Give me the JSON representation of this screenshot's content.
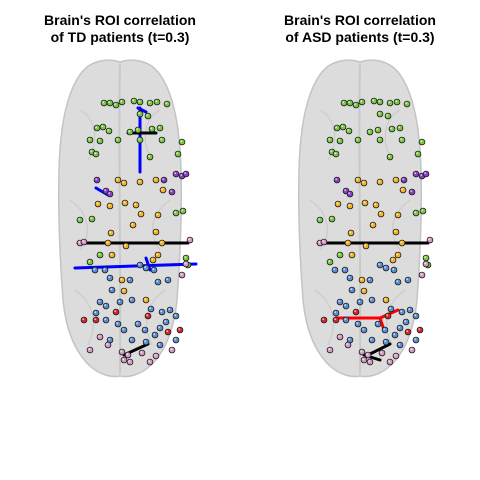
{
  "panels": [
    {
      "title_line1": "Brain's ROI correlation",
      "title_line2": "of TD patients (t=0.3)"
    },
    {
      "title_line1": "Brain's ROI correlation",
      "title_line2": "of ASD patients (t=0.3)"
    }
  ],
  "colors": {
    "brain_fill": "#dcdcdc",
    "brain_stroke": "#c4c4c4",
    "positive_edge": "#000000",
    "negative_edge_td": "#0000ff",
    "negative_edge_asd": "#ff0000",
    "node_green": "#7ac943",
    "node_purple": "#8a3fc4",
    "node_orange": "#f0b429",
    "node_blue": "#5b8fd6",
    "node_pink": "#d69cc8",
    "node_red": "#d62a2a"
  }
}
